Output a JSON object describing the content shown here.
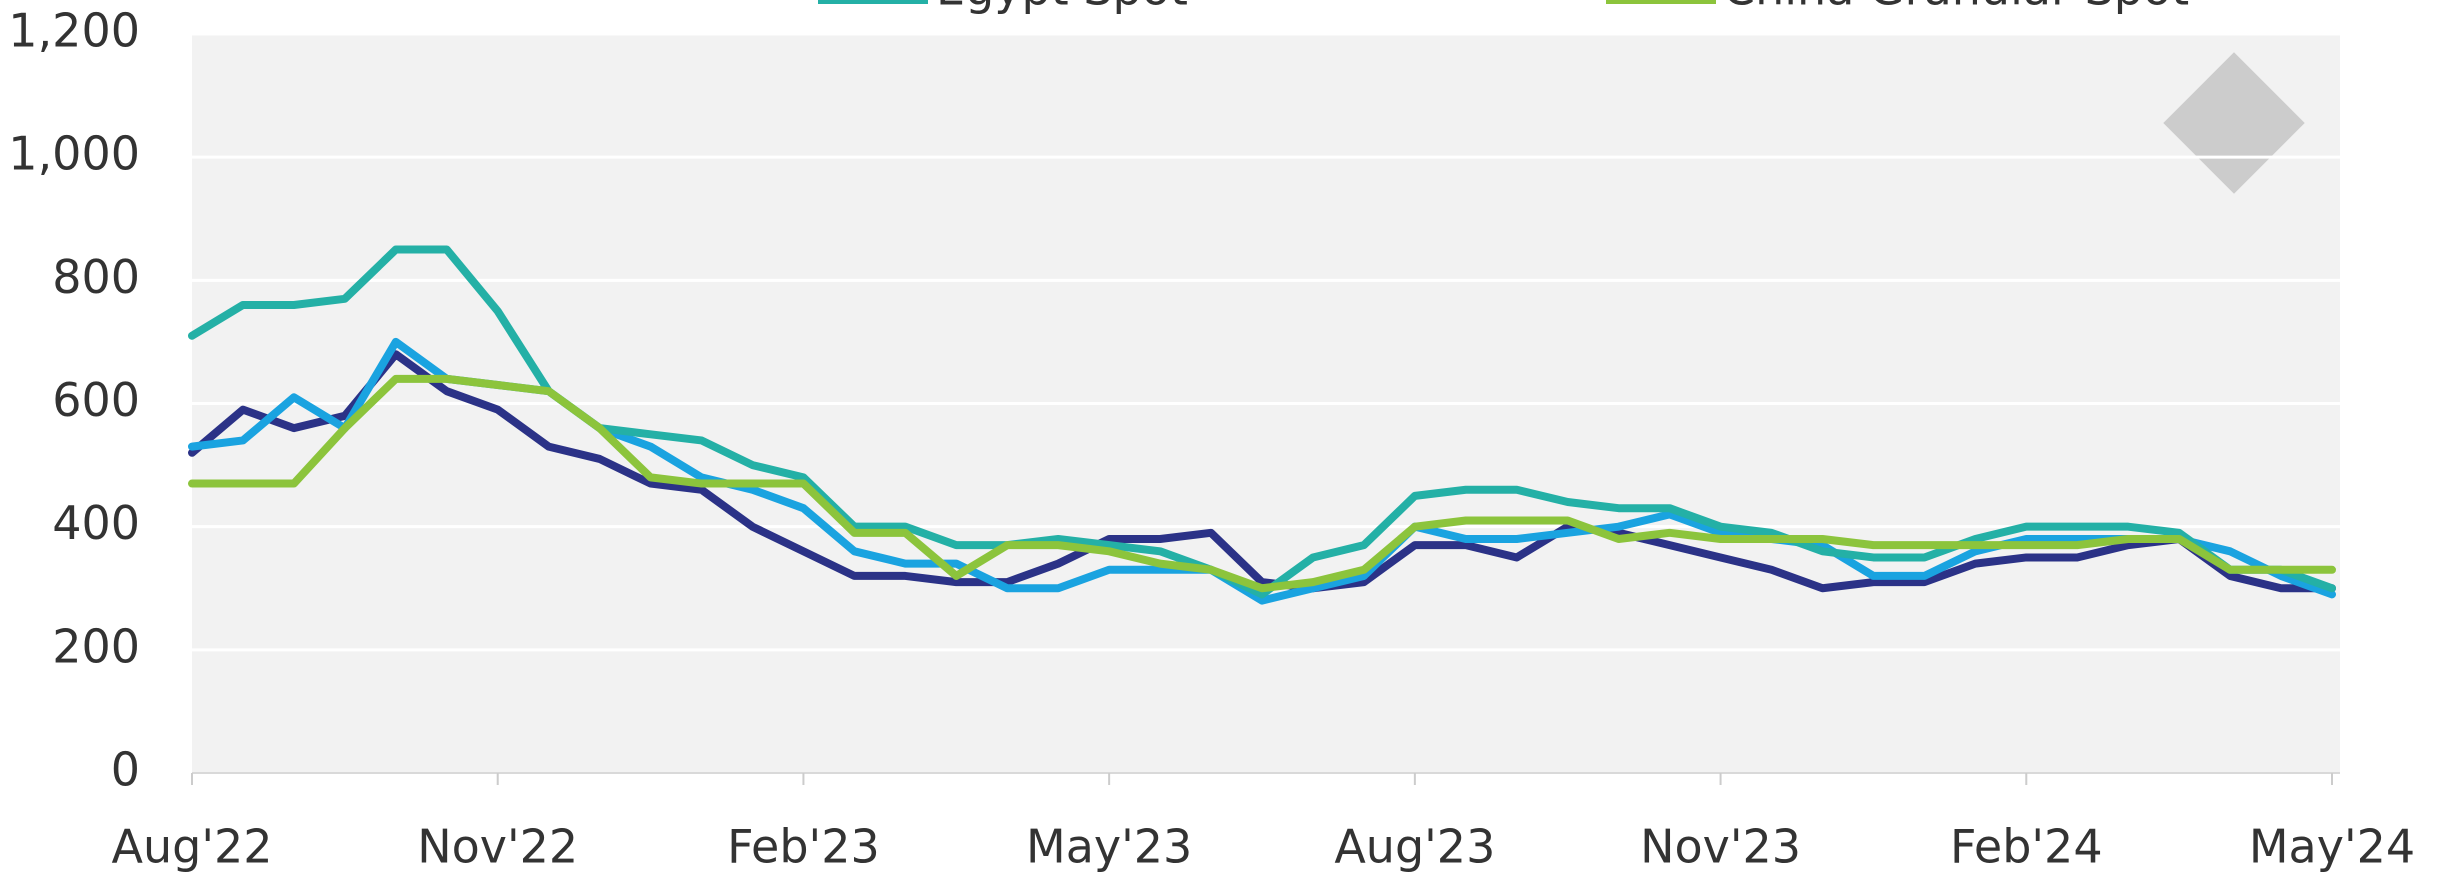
{
  "chart_data": {
    "type": "line",
    "x": [
      0,
      0.5,
      1,
      1.5,
      2,
      2.5,
      3,
      3.5,
      4,
      4.5,
      5,
      5.5,
      6,
      6.5,
      7,
      7.5,
      8,
      8.5,
      9,
      9.5,
      10,
      10.5,
      11,
      11.5,
      12,
      12.5,
      13,
      13.5,
      14,
      14.5,
      15,
      15.5,
      16,
      16.5,
      17,
      17.5,
      18,
      18.5,
      19,
      19.5,
      20,
      20.5,
      21
    ],
    "xlim": [
      0,
      21
    ],
    "xticks": [
      {
        "value": 0,
        "label": "Aug'22"
      },
      {
        "value": 3,
        "label": "Nov'22"
      },
      {
        "value": 6,
        "label": "Feb'23"
      },
      {
        "value": 9,
        "label": "May'23"
      },
      {
        "value": 12,
        "label": "Aug'23"
      },
      {
        "value": 15,
        "label": "Nov'23"
      },
      {
        "value": 18,
        "label": "Feb'24"
      },
      {
        "value": 21,
        "label": "May'24"
      }
    ],
    "ylim": [
      0,
      1200
    ],
    "yticks": [
      0,
      200,
      400,
      600,
      800,
      {
        "value": 1000,
        "label": "1,000"
      },
      {
        "value": 1200,
        "label": "1,200"
      }
    ],
    "grid": true,
    "series": [
      {
        "color": "#2b3287",
        "values": [
          520,
          590,
          560,
          580,
          680,
          620,
          590,
          530,
          510,
          470,
          460,
          400,
          360,
          320,
          320,
          310,
          310,
          340,
          380,
          380,
          390,
          310,
          300,
          310,
          370,
          370,
          350,
          400,
          390,
          370,
          350,
          330,
          300,
          310,
          310,
          340,
          350,
          350,
          370,
          380,
          320,
          300,
          300
        ]
      },
      {
        "color": "#1aa3e0",
        "values": [
          530,
          540,
          610,
          560,
          700,
          640,
          630,
          620,
          560,
          530,
          480,
          460,
          430,
          360,
          340,
          340,
          300,
          300,
          330,
          330,
          330,
          280,
          300,
          320,
          400,
          380,
          380,
          390,
          400,
          420,
          390,
          380,
          370,
          320,
          320,
          360,
          380,
          380,
          380,
          380,
          360,
          320,
          290
        ]
      },
      {
        "name": "Egypt Spot",
        "color": "#24b0a6",
        "values": [
          710,
          760,
          760,
          770,
          850,
          850,
          750,
          620,
          560,
          550,
          540,
          500,
          480,
          400,
          400,
          370,
          370,
          380,
          370,
          360,
          330,
          290,
          350,
          370,
          450,
          460,
          460,
          440,
          430,
          430,
          400,
          390,
          360,
          350,
          350,
          380,
          400,
          400,
          400,
          390,
          330,
          330,
          300
        ]
      },
      {
        "name": "China Granular Spot",
        "color": "#8cc43c",
        "values": [
          470,
          470,
          470,
          560,
          640,
          640,
          630,
          620,
          560,
          480,
          470,
          470,
          470,
          390,
          390,
          320,
          370,
          370,
          360,
          340,
          330,
          300,
          310,
          330,
          400,
          410,
          410,
          410,
          380,
          390,
          380,
          380,
          380,
          370,
          370,
          370,
          370,
          370,
          380,
          380,
          330,
          330,
          330
        ]
      }
    ]
  }
}
